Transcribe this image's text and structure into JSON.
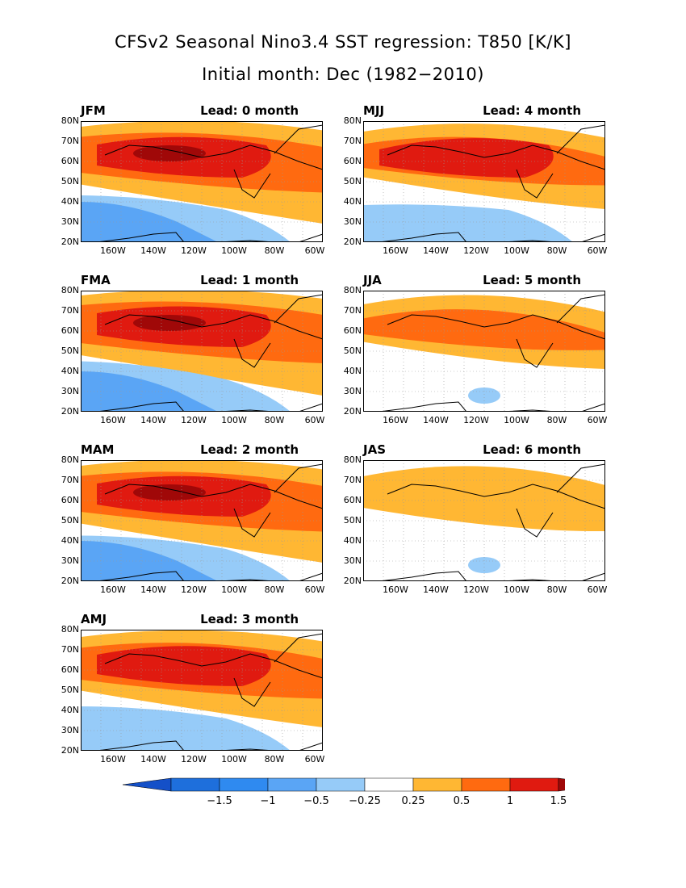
{
  "title_line1": "CFSv2 Seasonal Nino3.4 SST regression: T850 [K/K]",
  "title_line2": "Initial month: Dec (1982−2010)",
  "lat_labels": [
    "80N",
    "70N",
    "60N",
    "50N",
    "40N",
    "30N",
    "20N"
  ],
  "lon_labels": [
    "160W",
    "140W",
    "120W",
    "100W",
    "80W",
    "60W"
  ],
  "panels": [
    {
      "season": "JFM",
      "lead": "Lead: 0 month",
      "pos_level": 0.95,
      "neg_level": 0.6
    },
    {
      "season": "FMA",
      "lead": "Lead: 1 month",
      "pos_level": 1.0,
      "neg_level": 0.75
    },
    {
      "season": "MAM",
      "lead": "Lead: 2 month",
      "pos_level": 0.95,
      "neg_level": 0.55
    },
    {
      "season": "AMJ",
      "lead": "Lead: 3 month",
      "pos_level": 0.85,
      "neg_level": 0.5
    },
    {
      "season": "MJJ",
      "lead": "Lead: 4 month",
      "pos_level": 0.65,
      "neg_level": 0.2
    },
    {
      "season": "JJA",
      "lead": "Lead: 5 month",
      "pos_level": 0.45,
      "neg_level": 0.05
    },
    {
      "season": "JAS",
      "lead": "Lead: 6 month",
      "pos_level": 0.3,
      "neg_level": 0.1
    }
  ],
  "colorbar": {
    "labels": [
      "−1.5",
      "−1",
      "−0.5",
      "−0.25",
      "0.25",
      "0.5",
      "1",
      "1.5"
    ],
    "colors": [
      "#1e6fdc",
      "#2f8af0",
      "#5aa5f5",
      "#96cbf8",
      "#ffffff",
      "#ffb733",
      "#ff6a10",
      "#e01a10",
      "#a00808"
    ],
    "low_color": "#1450c8",
    "high_color": "#a00808"
  }
}
